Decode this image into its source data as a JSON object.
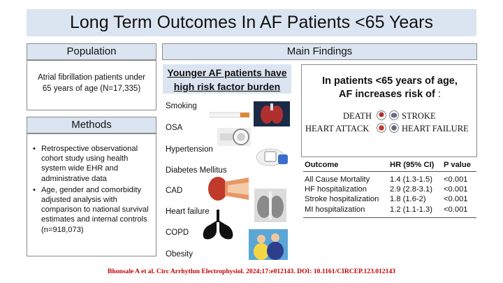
{
  "title": "Long Term Outcomes In AF Patients <65 Years",
  "population": {
    "header": "Population",
    "text": "Atrial fibrillation patients under 65 years of age (N=17,335)"
  },
  "methods": {
    "header": "Methods",
    "bullets": [
      "Retrospective observational cohort study using health system wide EHR and administrative data",
      "Age, gender and comorbidity adjusted analysis with comparison to national survival estimates and internal controls (n=918,073)"
    ]
  },
  "main_findings": {
    "header": "Main Findings",
    "burden_title": "Younger AF patients have high risk factor burden",
    "risk_factors": [
      "Smoking",
      "OSA",
      "Hypertension",
      "Diabetes Mellitus",
      "CAD",
      "Heart failure",
      "COPD",
      "Obesity"
    ],
    "af_risk": {
      "heading_line1": "In patients <65 years of age,",
      "heading_line2": "AF increases risk of",
      "heading_colon": ":",
      "outcomes": [
        "DEATH",
        "STROKE",
        "HEART ATTACK",
        "HEART FAILURE"
      ]
    },
    "table": {
      "headers": [
        "Outcome",
        "HR (95% CI)",
        "P  value"
      ],
      "rows": [
        [
          "All Cause Mortality",
          "1.4 (1.3-1.5)",
          "<0.001"
        ],
        [
          "HF hospitalization",
          "2.9 (2.8-3.1)",
          "<0.001"
        ],
        [
          "Stroke hospitalization",
          "1.8 (1.6-2)",
          "<0.001"
        ],
        [
          "MI hospitalization",
          "1.2 (1.1-1.3)",
          "<0.001"
        ]
      ]
    }
  },
  "citation": "Bhonsale A et al. Circ Arrhythm Electrophysiol. 2024;17:e012143. DOI: 10.1161/CIRCEP.123.012143",
  "colors": {
    "header_fill": "#dbe5f1",
    "citation_red": "#c00000"
  }
}
